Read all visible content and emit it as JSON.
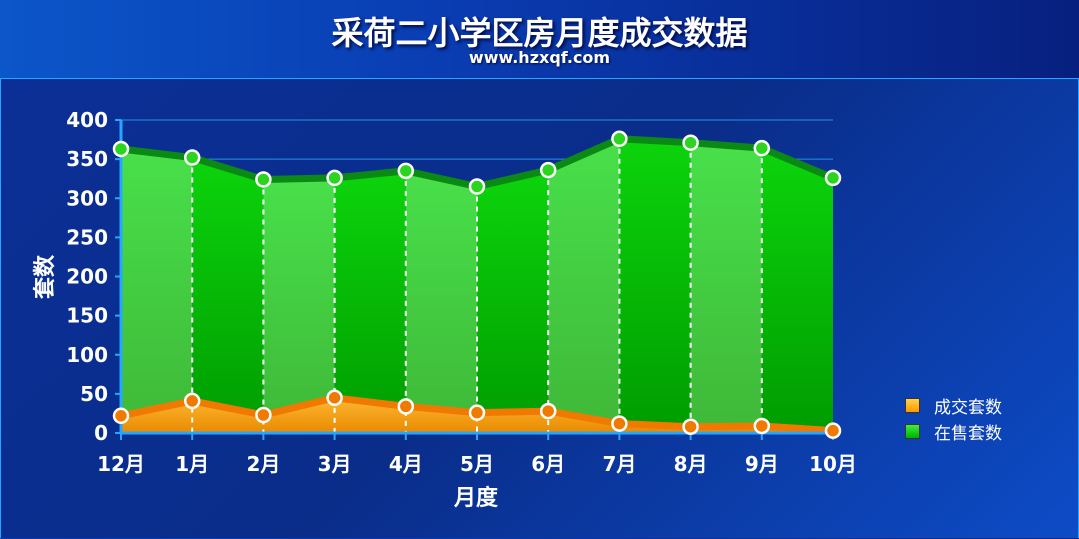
{
  "header": {
    "title": "采荷二小学区房月度成交数据",
    "subtitle": "www.hzxqf.com"
  },
  "chart_data": {
    "type": "area",
    "title": "采荷二小学区房月度成交数据",
    "subtitle": "www.hzxqf.com",
    "xlabel": "月度",
    "ylabel": "套数",
    "categories": [
      "12月",
      "1月",
      "2月",
      "3月",
      "4月",
      "5月",
      "6月",
      "7月",
      "8月",
      "9月",
      "10月"
    ],
    "ylim": [
      0,
      400
    ],
    "yticks": [
      0,
      50,
      100,
      150,
      200,
      250,
      300,
      350,
      400
    ],
    "series": [
      {
        "name": "成交套数",
        "color": "#ff9900",
        "values": [
          22,
          41,
          23,
          45,
          34,
          26,
          28,
          12,
          8,
          9,
          3
        ]
      },
      {
        "name": "在售套数",
        "color": "#00cc00",
        "values": [
          363,
          352,
          324,
          326,
          335,
          315,
          336,
          376,
          371,
          364,
          326
        ]
      }
    ],
    "legend_position": "bottom-right",
    "grid": true
  }
}
